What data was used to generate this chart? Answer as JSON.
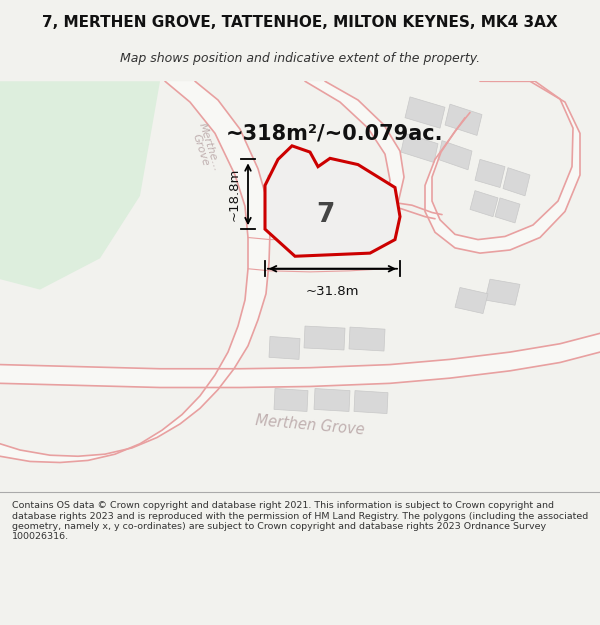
{
  "title_line1": "7, MERTHEN GROVE, TATTENHOE, MILTON KEYNES, MK4 3AX",
  "title_line2": "Map shows position and indicative extent of the property.",
  "area_text": "~318m²/~0.079ac.",
  "label_7": "7",
  "dim_horiz": "~31.8m",
  "dim_vert": "~18.8m",
  "street_name_bottom": "Merthen Grove",
  "street_name_diag": "Merthe… Grove",
  "footer": "Contains OS data © Crown copyright and database right 2021. This information is subject to Crown copyright and database rights 2023 and is reproduced with the permission of HM Land Registry. The polygons (including the associated geometry, namely x, y co-ordinates) are subject to Crown copyright and database rights 2023 Ordnance Survey 100026316.",
  "bg_color": "#f2f2ee",
  "map_bg": "#ffffff",
  "green_area_color": "#ddeedd",
  "plot_outline_color": "#cc0000",
  "plot_fill_color": "#f0efee",
  "building_fill": "#d8d8d8",
  "building_edge": "#c8c8c8",
  "road_line_color": "#e8a0a0",
  "footer_bg": "#ffffff",
  "footer_line_color": "#aaaaaa"
}
